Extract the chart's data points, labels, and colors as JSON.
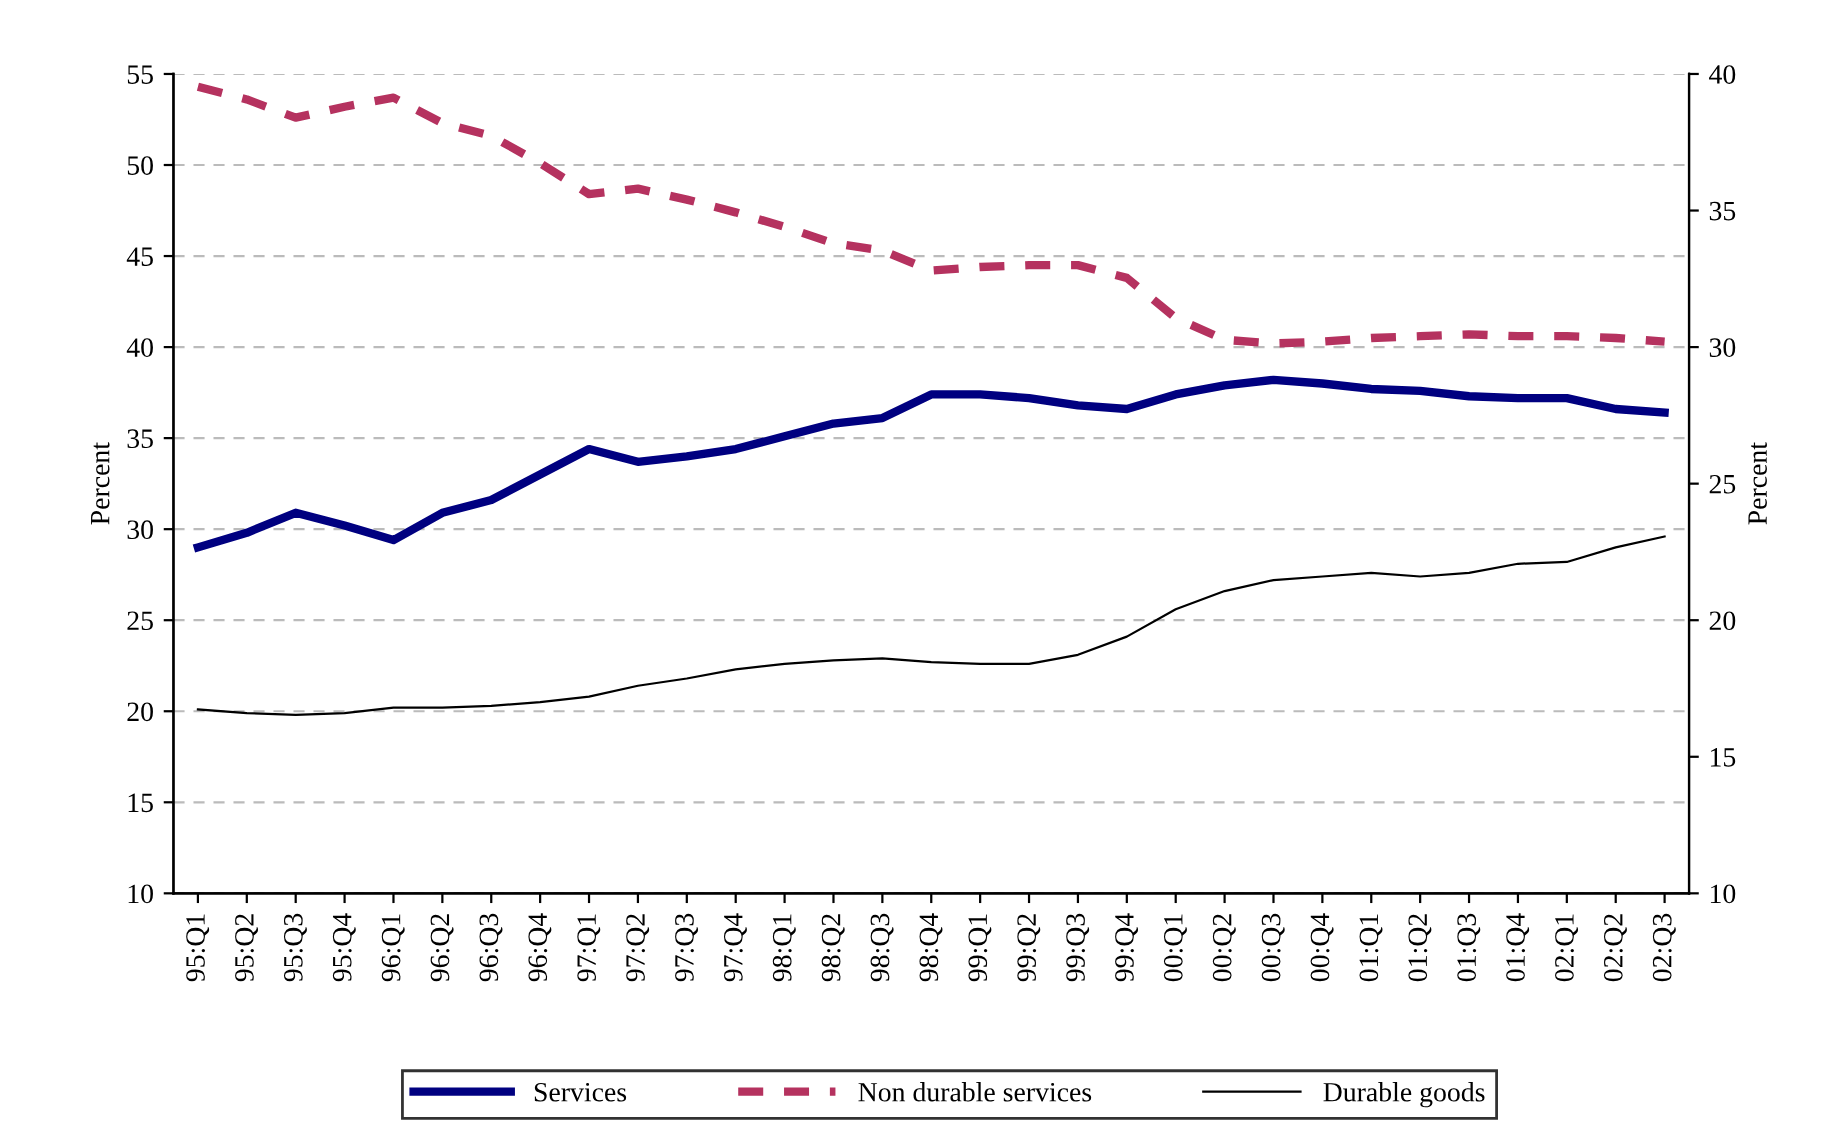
{
  "chart_data": {
    "type": "line",
    "categories": [
      "95:Q1",
      "95:Q2",
      "95:Q3",
      "95:Q4",
      "96:Q1",
      "96:Q2",
      "96:Q3",
      "96:Q4",
      "97:Q1",
      "97:Q2",
      "97:Q3",
      "97:Q4",
      "98:Q1",
      "98:Q2",
      "98:Q3",
      "98:Q4",
      "99:Q1",
      "99:Q2",
      "99:Q3",
      "99:Q4",
      "00:Q1",
      "00:Q2",
      "00:Q3",
      "00:Q4",
      "01:Q1",
      "01:Q2",
      "01:Q3",
      "01:Q4",
      "02:Q1",
      "02:Q2",
      "02:Q3"
    ],
    "series": [
      {
        "name": "Services",
        "color": "#000080",
        "line_style": "solid",
        "values": [
          29.0,
          29.8,
          30.9,
          30.2,
          29.4,
          30.9,
          31.6,
          33.0,
          34.4,
          33.7,
          34.0,
          34.4,
          35.1,
          35.8,
          36.1,
          37.4,
          37.4,
          37.2,
          36.8,
          36.6,
          37.4,
          37.9,
          38.2,
          38.0,
          37.7,
          37.6,
          37.3,
          37.2,
          37.2,
          36.6,
          36.4
        ]
      },
      {
        "name": "Non durable services",
        "color": "#b5325f",
        "line_style": "dashed",
        "values": [
          54.3,
          53.6,
          52.6,
          53.2,
          53.7,
          52.3,
          51.6,
          50.1,
          48.4,
          48.7,
          48.1,
          47.4,
          46.6,
          45.7,
          45.3,
          44.2,
          44.4,
          44.5,
          44.5,
          43.8,
          41.6,
          40.4,
          40.2,
          40.3,
          40.5,
          40.6,
          40.7,
          40.6,
          40.6,
          40.5,
          40.3
        ]
      },
      {
        "name": "Durable goods",
        "color": "#000000",
        "line_style": "solid",
        "values": [
          20.1,
          19.9,
          19.8,
          19.9,
          20.2,
          20.2,
          20.3,
          20.5,
          20.8,
          21.4,
          21.8,
          22.3,
          22.6,
          22.8,
          22.9,
          22.7,
          22.6,
          22.6,
          23.1,
          24.1,
          25.6,
          26.6,
          27.2,
          27.4,
          27.6,
          27.4,
          27.6,
          28.1,
          28.2,
          29.0,
          29.6
        ]
      }
    ],
    "ylabel": "Percent",
    "y2label": "Percent",
    "ylim": [
      10,
      55
    ],
    "yticks": [
      10,
      15,
      20,
      25,
      30,
      35,
      40,
      45,
      50,
      55
    ],
    "y2lim": [
      10,
      40
    ],
    "y2ticks": [
      10,
      15,
      20,
      25,
      30,
      35,
      40
    ],
    "grid": "y",
    "legend": "bottom",
    "marker": "none"
  }
}
